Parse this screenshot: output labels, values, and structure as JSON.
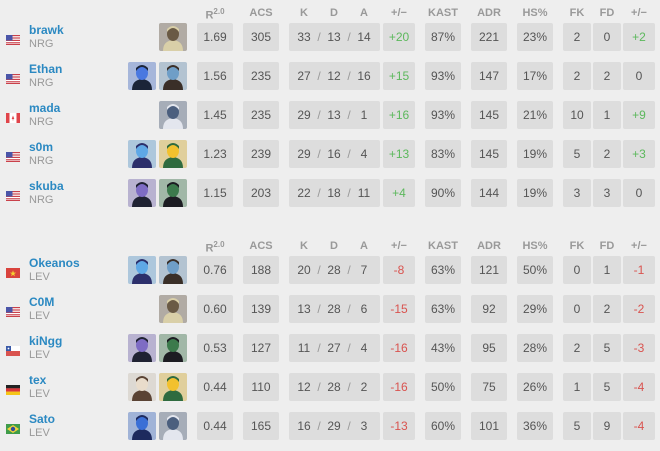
{
  "headers": {
    "rating": "R",
    "rating_sup": "2.0",
    "acs": "ACS",
    "k": "K",
    "d": "D",
    "a": "A",
    "diff": "+/−",
    "kast": "KAST",
    "adr": "ADR",
    "hs": "HS%",
    "fk": "FK",
    "fd": "FD",
    "fkfd_diff": "+/−"
  },
  "slash": "/",
  "colors": {
    "positive": "#5cb85c",
    "negative": "#d9534f",
    "player_link": "#2b89c2"
  },
  "teams": [
    {
      "players": [
        {
          "flag": "us",
          "name": "brawk",
          "team": "NRG",
          "agents": [
            "sova"
          ],
          "rating": "1.69",
          "acs": "305",
          "k": "33",
          "d": "13",
          "a": "14",
          "diff": "+20",
          "kast": "87%",
          "adr": "221",
          "hs": "23%",
          "fk": "2",
          "fd": "0",
          "fkfd": "+2"
        },
        {
          "flag": "us",
          "name": "Ethan",
          "team": "NRG",
          "agents": [
            "kayo",
            "harbor"
          ],
          "rating": "1.56",
          "acs": "235",
          "k": "27",
          "d": "12",
          "a": "16",
          "diff": "+15",
          "kast": "93%",
          "adr": "147",
          "hs": "17%",
          "fk": "2",
          "fd": "2",
          "fkfd": "0"
        },
        {
          "flag": "ca",
          "name": "mada",
          "team": "NRG",
          "agents": [
            "jett"
          ],
          "rating": "1.45",
          "acs": "235",
          "k": "29",
          "d": "13",
          "a": "1",
          "diff": "+16",
          "kast": "93%",
          "adr": "145",
          "hs": "21%",
          "fk": "10",
          "fd": "1",
          "fkfd": "+9"
        },
        {
          "flag": "us",
          "name": "s0m",
          "team": "NRG",
          "agents": [
            "omen",
            "killjoy"
          ],
          "rating": "1.23",
          "acs": "239",
          "k": "29",
          "d": "16",
          "a": "4",
          "diff": "+13",
          "kast": "83%",
          "adr": "145",
          "hs": "19%",
          "fk": "5",
          "fd": "2",
          "fkfd": "+3"
        },
        {
          "flag": "us",
          "name": "skuba",
          "team": "NRG",
          "agents": [
            "iso",
            "viper"
          ],
          "rating": "1.15",
          "acs": "203",
          "k": "22",
          "d": "18",
          "a": "11",
          "diff": "+4",
          "kast": "90%",
          "adr": "144",
          "hs": "19%",
          "fk": "3",
          "fd": "3",
          "fkfd": "0"
        }
      ]
    },
    {
      "players": [
        {
          "flag": "vn",
          "name": "Okeanos",
          "team": "LEV",
          "agents": [
            "omen",
            "harbor"
          ],
          "rating": "0.76",
          "acs": "188",
          "k": "20",
          "d": "28",
          "a": "7",
          "diff": "-8",
          "kast": "63%",
          "adr": "121",
          "hs": "50%",
          "fk": "0",
          "fd": "1",
          "fkfd": "-1"
        },
        {
          "flag": "us",
          "name": "C0M",
          "team": "LEV",
          "agents": [
            "sova"
          ],
          "rating": "0.60",
          "acs": "139",
          "k": "13",
          "d": "28",
          "a": "6",
          "diff": "-15",
          "kast": "63%",
          "adr": "92",
          "hs": "29%",
          "fk": "0",
          "fd": "2",
          "fkfd": "-2"
        },
        {
          "flag": "cl",
          "name": "kiNgg",
          "team": "LEV",
          "agents": [
            "iso",
            "viper"
          ],
          "rating": "0.53",
          "acs": "127",
          "k": "11",
          "d": "27",
          "a": "4",
          "diff": "-16",
          "kast": "43%",
          "adr": "95",
          "hs": "28%",
          "fk": "2",
          "fd": "5",
          "fkfd": "-3"
        },
        {
          "flag": "de",
          "name": "tex",
          "team": "LEV",
          "agents": [
            "chamber",
            "killjoy"
          ],
          "rating": "0.44",
          "acs": "110",
          "k": "12",
          "d": "28",
          "a": "2",
          "diff": "-16",
          "kast": "50%",
          "adr": "75",
          "hs": "26%",
          "fk": "1",
          "fd": "5",
          "fkfd": "-4"
        },
        {
          "flag": "br",
          "name": "Sato",
          "team": "LEV",
          "agents": [
            "yoru",
            "jett"
          ],
          "rating": "0.44",
          "acs": "165",
          "k": "16",
          "d": "29",
          "a": "3",
          "diff": "-13",
          "kast": "60%",
          "adr": "101",
          "hs": "36%",
          "fk": "5",
          "fd": "9",
          "fkfd": "-4"
        }
      ]
    }
  ]
}
